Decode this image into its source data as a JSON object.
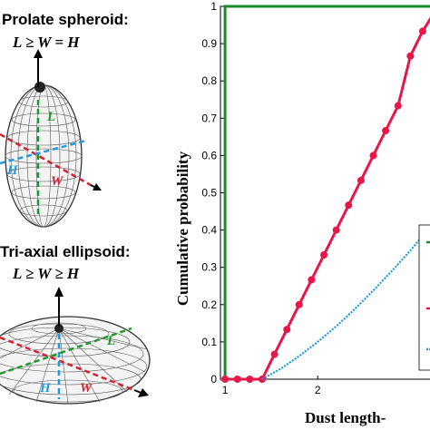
{
  "left_panel": {
    "top_title": "Prolate spheroid:",
    "top_relation": "L ≥ W = H",
    "bottom_title": "Tri-axial ellipsoid:",
    "bottom_relation": "L ≥ W ≥ H",
    "axis_letters": {
      "L": "L",
      "W": "W",
      "H": "H"
    },
    "colors": {
      "L": "#1a9a2a",
      "W": "#d4202e",
      "H": "#1e9be0"
    }
  },
  "chart_data": {
    "type": "line",
    "ylabel": "Cumulative probability",
    "xlabel": "Dust length-",
    "xlim": [
      0.95,
      3.3
    ],
    "ylim": [
      0,
      1
    ],
    "x_ticks": [
      1,
      2
    ],
    "y_ticks": [
      0,
      0.1,
      0.2,
      0.3,
      0.4,
      0.5,
      0.6,
      0.7,
      0.8,
      0.9,
      1
    ],
    "grid": false,
    "series": [
      {
        "color": "#1a8a2a",
        "style": "step",
        "points": [
          [
            0.95,
            0
          ],
          [
            1.0,
            0
          ],
          [
            1.0,
            1
          ],
          [
            3.3,
            1
          ]
        ]
      },
      {
        "color": "#e8174a",
        "style": "solid-with-markers",
        "points": [
          [
            1.0,
            0
          ],
          [
            1.133,
            0
          ],
          [
            1.267,
            0
          ],
          [
            1.4,
            0
          ],
          [
            1.533,
            0.0667
          ],
          [
            1.667,
            0.1333
          ],
          [
            1.8,
            0.2
          ],
          [
            1.933,
            0.2667
          ],
          [
            2.067,
            0.3333
          ],
          [
            2.2,
            0.4
          ],
          [
            2.333,
            0.4667
          ],
          [
            2.467,
            0.5333
          ],
          [
            2.6,
            0.6
          ],
          [
            2.733,
            0.6667
          ],
          [
            2.867,
            0.7333
          ],
          [
            3.0,
            0.8667
          ],
          [
            3.133,
            0.9333
          ],
          [
            3.3,
            1
          ]
        ]
      },
      {
        "color": "#1e9be0",
        "style": "dotted",
        "points": [
          [
            1.4,
            0
          ],
          [
            1.6,
            0.028
          ],
          [
            1.8,
            0.062
          ],
          [
            2.0,
            0.1
          ],
          [
            2.2,
            0.142
          ],
          [
            2.4,
            0.188
          ],
          [
            2.6,
            0.238
          ],
          [
            2.8,
            0.29
          ],
          [
            3.0,
            0.345
          ],
          [
            3.2,
            0.405
          ],
          [
            3.3,
            0.44
          ]
        ]
      }
    ],
    "legend_placement": "right (clipped)"
  }
}
